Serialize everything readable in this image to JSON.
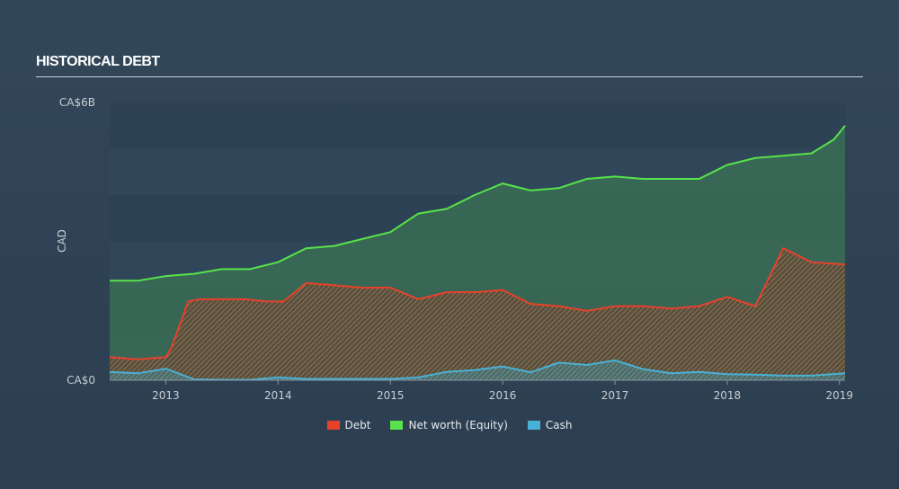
{
  "page": {
    "title": "HISTORICAL DEBT"
  },
  "chart_data": {
    "type": "area",
    "ylabel": "CAD",
    "y_tick_labels": [
      "CA$6B",
      "CA$0"
    ],
    "ylim": [
      0,
      6
    ],
    "x_tick_labels": [
      "2013",
      "2014",
      "2015",
      "2016",
      "2017",
      "2018",
      "2019"
    ],
    "xlim": [
      2012.5,
      2019.05
    ],
    "grid": true,
    "legend_position": "bottom-center",
    "series": [
      {
        "name": "Debt",
        "color": "#e8412b",
        "x": [
          2012.5,
          2012.75,
          2013.0,
          2013.05,
          2013.2,
          2013.3,
          2013.7,
          2013.9,
          2014.05,
          2014.25,
          2014.5,
          2014.75,
          2015.0,
          2015.25,
          2015.5,
          2015.75,
          2016.0,
          2016.25,
          2016.5,
          2016.75,
          2017.0,
          2017.25,
          2017.5,
          2017.75,
          2018.0,
          2018.25,
          2018.5,
          2018.75,
          2019.05
        ],
        "values": [
          0.5,
          0.45,
          0.5,
          0.7,
          1.7,
          1.75,
          1.75,
          1.7,
          1.7,
          2.1,
          2.05,
          2.0,
          2.0,
          1.75,
          1.9,
          1.9,
          1.95,
          1.65,
          1.6,
          1.5,
          1.6,
          1.6,
          1.55,
          1.6,
          1.8,
          1.6,
          2.85,
          2.55,
          2.5
        ]
      },
      {
        "name": "Net worth (Equity)",
        "color": "#58e24b",
        "x": [
          2012.5,
          2012.75,
          2013.0,
          2013.25,
          2013.5,
          2013.75,
          2014.0,
          2014.25,
          2014.5,
          2014.75,
          2015.0,
          2015.25,
          2015.5,
          2015.75,
          2016.0,
          2016.25,
          2016.5,
          2016.75,
          2017.0,
          2017.25,
          2017.5,
          2017.75,
          2018.0,
          2018.25,
          2018.5,
          2018.75,
          2018.95,
          2019.05
        ],
        "values": [
          2.15,
          2.15,
          2.25,
          2.3,
          2.4,
          2.4,
          2.55,
          2.85,
          2.9,
          3.05,
          3.2,
          3.6,
          3.7,
          4.0,
          4.25,
          4.1,
          4.15,
          4.35,
          4.4,
          4.35,
          4.35,
          4.35,
          4.65,
          4.8,
          4.85,
          4.9,
          5.2,
          5.5
        ]
      },
      {
        "name": "Cash",
        "color": "#4ab1d6",
        "x": [
          2012.5,
          2012.75,
          2013.0,
          2013.25,
          2013.5,
          2013.75,
          2014.0,
          2014.25,
          2014.5,
          2014.75,
          2015.0,
          2015.25,
          2015.5,
          2015.75,
          2016.0,
          2016.25,
          2016.5,
          2016.75,
          2017.0,
          2017.25,
          2017.5,
          2017.75,
          2018.0,
          2018.25,
          2018.5,
          2018.75,
          2019.05
        ],
        "values": [
          0.18,
          0.15,
          0.25,
          0.02,
          0.01,
          0.01,
          0.06,
          0.03,
          0.03,
          0.03,
          0.03,
          0.06,
          0.18,
          0.22,
          0.3,
          0.17,
          0.38,
          0.33,
          0.43,
          0.24,
          0.15,
          0.18,
          0.13,
          0.12,
          0.1,
          0.1,
          0.15
        ]
      }
    ]
  }
}
